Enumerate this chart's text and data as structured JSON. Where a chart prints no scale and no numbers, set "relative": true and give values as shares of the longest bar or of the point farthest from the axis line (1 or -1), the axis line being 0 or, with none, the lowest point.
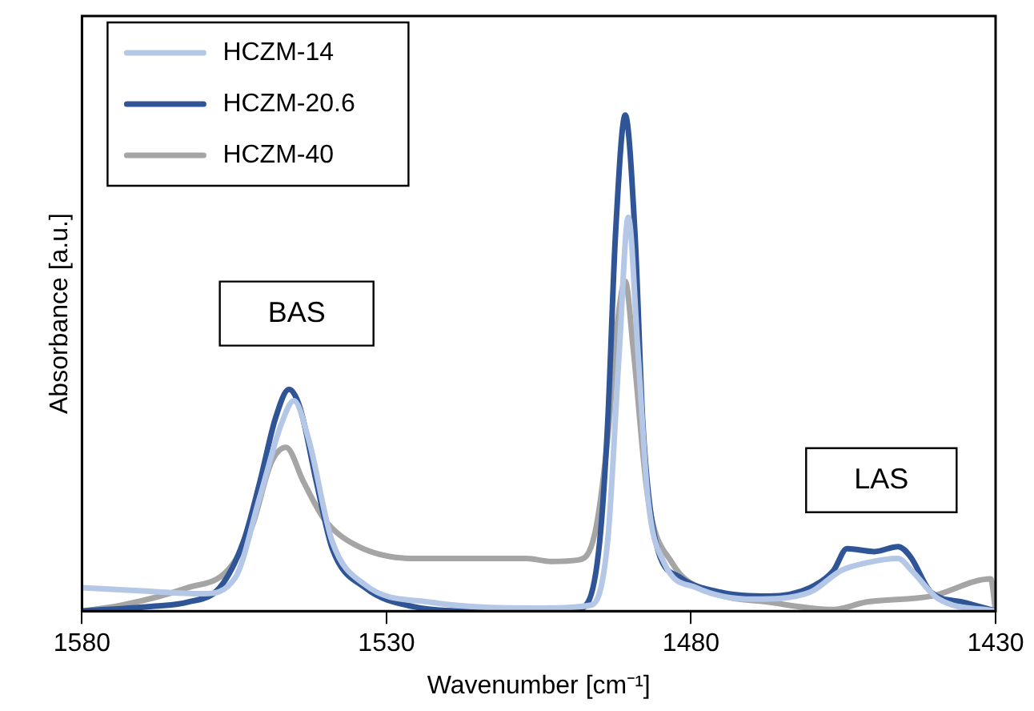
{
  "chart_data": {
    "type": "line",
    "relative": true,
    "xlabel": "Wavenumber [cm⁻¹]",
    "ylabel": "Absorbance [a.u.]",
    "xlim": [
      1580,
      1430
    ],
    "xticks": [
      1580,
      1530,
      1480,
      1430
    ],
    "grid": false,
    "legend": "top left",
    "marker": "none",
    "line_style": "solid",
    "annotations": [
      "BAS",
      "LAS"
    ],
    "series": [
      {
        "name": "HCZM-14",
        "color": "#b4c7e7",
        "x": [
          1580,
          1570.7,
          1560.1,
          1554.8,
          1550.8,
          1547.3,
          1545.2,
          1542.8,
          1538.9,
          1533.5,
          1522.9,
          1504.3,
          1496.4,
          1493.7,
          1491.8,
          1490.3,
          1488.7,
          1487.1,
          1484.4,
          1479.1,
          1469.8,
          1460.5,
          1455.3,
          1451.3,
          1446,
          1443.8,
          1439.3,
          1430
        ],
        "values": [
          0.047,
          0.041,
          0.035,
          0.068,
          0.23,
          0.376,
          0.424,
          0.347,
          0.14,
          0.053,
          0.018,
          0.006,
          0.012,
          0.14,
          0.52,
          0.794,
          0.52,
          0.23,
          0.097,
          0.047,
          0.024,
          0.038,
          0.082,
          0.097,
          0.106,
          0.082,
          0.024,
          0
        ]
      },
      {
        "name": "HCZM-20.6",
        "color": "#2f5597",
        "x": [
          1580,
          1568,
          1562.7,
          1557.4,
          1553.5,
          1550.8,
          1548.2,
          1546,
          1544.2,
          1541.5,
          1538.9,
          1533.5,
          1525.6,
          1515,
          1499,
          1496.9,
          1495,
          1493.7,
          1492.4,
          1490.8,
          1489.2,
          1487.9,
          1485.8,
          1481.8,
          1475.1,
          1467.2,
          1460.5,
          1456.6,
          1454.4,
          1449.9,
          1446,
          1444,
          1440.6,
          1435.3,
          1430
        ],
        "values": [
          0,
          0.01,
          0.018,
          0.047,
          0.14,
          0.26,
          0.39,
          0.447,
          0.41,
          0.26,
          0.126,
          0.047,
          0.009,
          0,
          0.003,
          0.018,
          0.14,
          0.376,
          0.76,
          1,
          0.76,
          0.376,
          0.14,
          0.068,
          0.038,
          0.03,
          0.047,
          0.082,
          0.126,
          0.12,
          0.13,
          0.11,
          0.038,
          0.018,
          0
        ]
      },
      {
        "name": "HCZM-40",
        "color": "#a5a5a5",
        "x": [
          1580,
          1573.4,
          1562.7,
          1556.1,
          1552.1,
          1548.9,
          1546.5,
          1543.6,
          1540.2,
          1534.9,
          1525.6,
          1507,
          1503,
          1498.5,
          1495.8,
          1493.7,
          1492.1,
          1490.8,
          1489.5,
          1487.1,
          1483.1,
          1476.5,
          1467.2,
          1456.6,
          1451.3,
          1440.6,
          1430.8,
          1430
        ],
        "values": [
          0,
          0.012,
          0.047,
          0.082,
          0.17,
          0.3,
          0.33,
          0.26,
          0.185,
          0.132,
          0.106,
          0.106,
          0.1,
          0.103,
          0.156,
          0.347,
          0.58,
          0.665,
          0.53,
          0.23,
          0.097,
          0.038,
          0.018,
          0.003,
          0.018,
          0.03,
          0.065,
          0
        ]
      }
    ]
  }
}
